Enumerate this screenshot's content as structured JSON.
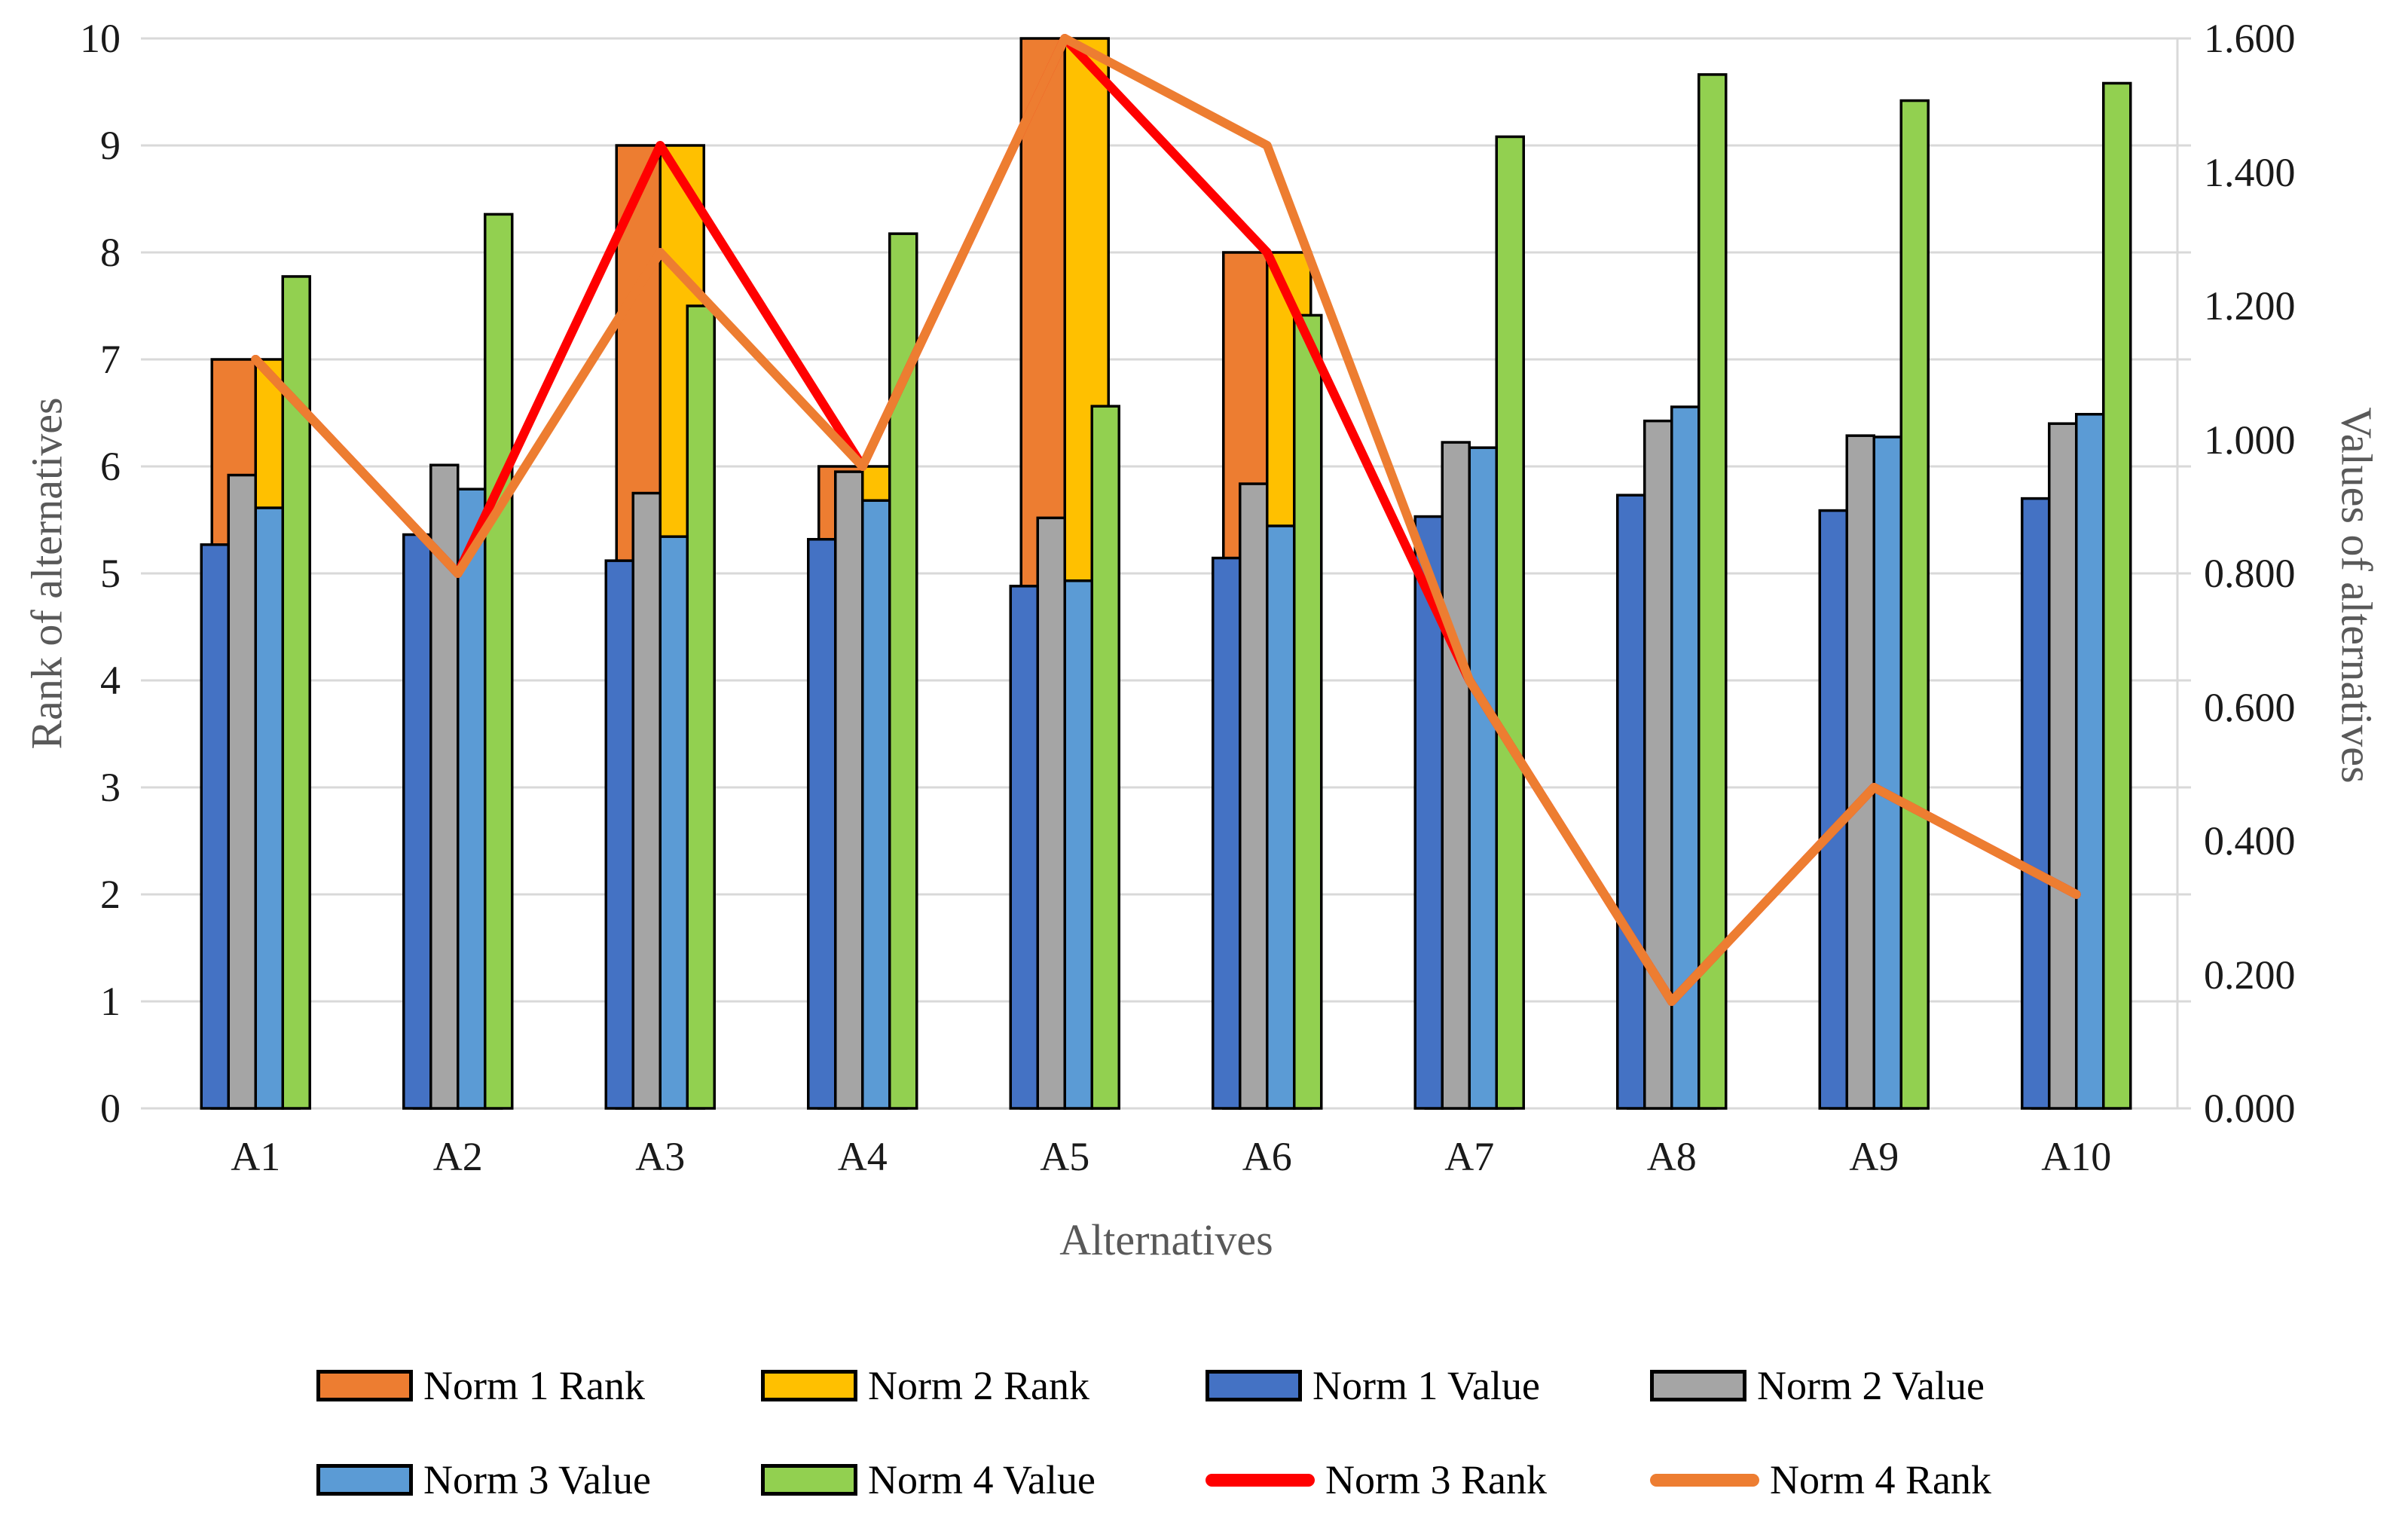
{
  "axes": {
    "left_title": "Rank of alternatives",
    "right_title": "Values of alternatives",
    "x_title": "Alternatives"
  },
  "chart_data": {
    "type": "bar+line combo (clustered bars, two value axes)",
    "title": "",
    "categories": [
      "A1",
      "A2",
      "A3",
      "A4",
      "A5",
      "A6",
      "A7",
      "A8",
      "A9",
      "A10"
    ],
    "x_label": "Alternatives",
    "left_axis": {
      "label": "Rank of alternatives",
      "min": 0,
      "max": 10,
      "step": 1,
      "ticks": [
        "0",
        "1",
        "2",
        "3",
        "4",
        "5",
        "6",
        "7",
        "8",
        "9",
        "10"
      ],
      "grid": true
    },
    "right_axis": {
      "label": "Values of alternatives",
      "min": 0,
      "max": 1.6,
      "step": 0.2,
      "ticks": [
        "0.000",
        "0.200",
        "0.400",
        "0.600",
        "0.800",
        "1.000",
        "1.200",
        "1.400",
        "1.600"
      ]
    },
    "bar_series": [
      {
        "name": "Norm 1 Rank",
        "axis": "left",
        "color": "#ED7D31",
        "group": "wide",
        "values": [
          7,
          5,
          9,
          6,
          10,
          8,
          4,
          1,
          3,
          2
        ]
      },
      {
        "name": "Norm 2 Rank",
        "axis": "left",
        "color": "#FFC000",
        "group": "wide",
        "values": [
          7,
          5,
          9,
          6,
          10,
          8,
          4,
          1,
          3,
          2
        ]
      },
      {
        "name": "Norm 1 Value",
        "axis": "right",
        "color": "#4472C4",
        "group": "narrow",
        "values": [
          0.843,
          0.858,
          0.819,
          0.851,
          0.781,
          0.823,
          0.885,
          0.917,
          0.894,
          0.912
        ]
      },
      {
        "name": "Norm 2 Value",
        "axis": "right",
        "color": "#A5A5A5",
        "group": "narrow",
        "values": [
          0.947,
          0.962,
          0.92,
          0.952,
          0.883,
          0.934,
          0.996,
          1.028,
          1.006,
          1.024
        ]
      },
      {
        "name": "Norm 3 Value",
        "axis": "right",
        "color": "#5B9BD5",
        "group": "narrow",
        "values": [
          0.898,
          0.926,
          0.855,
          0.909,
          0.789,
          0.871,
          0.988,
          1.049,
          1.004,
          1.038
        ]
      },
      {
        "name": "Norm 4 Value",
        "axis": "right",
        "color": "#92D050",
        "group": "narrow",
        "values": [
          1.244,
          1.337,
          1.2,
          1.308,
          1.05,
          1.186,
          1.453,
          1.546,
          1.507,
          1.533
        ]
      }
    ],
    "line_series": [
      {
        "name": "Norm 3 Rank",
        "axis": "left",
        "color": "#FF0000",
        "values": [
          7,
          5,
          9,
          6,
          10,
          8,
          4,
          1,
          3,
          2
        ]
      },
      {
        "name": "Norm 4 Rank",
        "axis": "left",
        "color": "#ED7D31",
        "values": [
          7,
          5,
          8,
          6,
          10,
          9,
          4,
          1,
          3,
          2
        ]
      }
    ],
    "legend_position": "bottom, two rows",
    "legend": [
      {
        "label": "Norm 1 Rank",
        "swatch": "rect",
        "color": "#ED7D31",
        "row": 0,
        "col": 0
      },
      {
        "label": "Norm 2 Rank",
        "swatch": "rect",
        "color": "#FFC000",
        "row": 0,
        "col": 1
      },
      {
        "label": "Norm 1 Value",
        "swatch": "rect",
        "color": "#4472C4",
        "row": 0,
        "col": 2
      },
      {
        "label": "Norm 2 Value",
        "swatch": "rect",
        "color": "#A5A5A5",
        "row": 0,
        "col": 3
      },
      {
        "label": "Norm 3 Value",
        "swatch": "rect",
        "color": "#5B9BD5",
        "row": 1,
        "col": 0
      },
      {
        "label": "Norm 4 Value",
        "swatch": "rect",
        "color": "#92D050",
        "row": 1,
        "col": 1
      },
      {
        "label": "Norm 3 Rank",
        "swatch": "line",
        "color": "#FF0000",
        "row": 1,
        "col": 2
      },
      {
        "label": "Norm 4 Rank",
        "swatch": "line",
        "color": "#ED7D31",
        "row": 1,
        "col": 3
      }
    ],
    "style": {
      "gridline_color": "#D9D9D9",
      "bar_border_color": "#000000",
      "tick_label_color": "#1a1a1a",
      "axis_title_color": "#595959",
      "background": "#FFFFFF"
    }
  }
}
